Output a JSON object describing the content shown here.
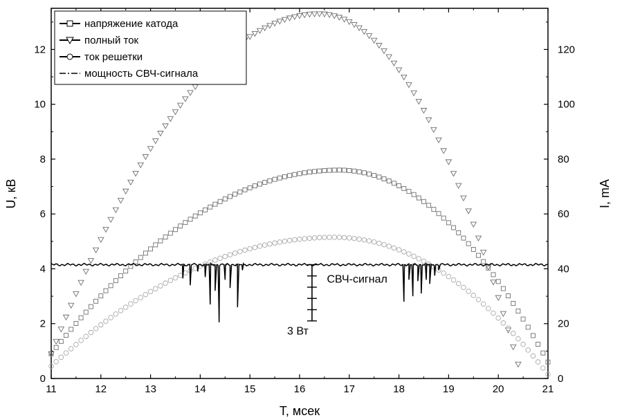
{
  "chart_data": {
    "type": "scatter",
    "xlabel": "T, мсек",
    "ylabel_left": "U, кВ",
    "ylabel_right": "I, mA",
    "xlim": [
      11,
      21
    ],
    "ylim_left": [
      0,
      13.5
    ],
    "ylim_right": [
      0,
      135
    ],
    "x_ticks": [
      11,
      12,
      13,
      14,
      15,
      16,
      17,
      18,
      19,
      20,
      21
    ],
    "y_left_ticks": [
      0,
      2,
      4,
      6,
      8,
      10,
      12
    ],
    "y_right_ticks": [
      0,
      20,
      40,
      60,
      80,
      100,
      120
    ],
    "grid": false,
    "legend": {
      "placement": "top-left",
      "entries": [
        {
          "label": "напряжение катода",
          "marker": "square"
        },
        {
          "label": "полный ток",
          "marker": "triangle-down"
        },
        {
          "label": "ток решетки",
          "marker": "circle"
        },
        {
          "label": "мощность СВЧ-сигнала",
          "marker": "dash-dot"
        }
      ]
    },
    "series": [
      {
        "name": "напряжение катода",
        "axis": "left",
        "marker": "square",
        "color": "#6e6e6e",
        "model": {
          "x_start": 11.0,
          "x_end": 21.0,
          "step": 0.1,
          "peak_x": 16.8,
          "peak_y": 7.6,
          "y_at_start": 0.9,
          "y_at_end": 0.6
        }
      },
      {
        "name": "полный ток",
        "axis": "right",
        "marker": "triangle-down",
        "color": "#6e6e6e",
        "model": {
          "x_start": 11.0,
          "x_end": 20.45,
          "step": 0.1,
          "peak_x": 16.4,
          "peak_y": 133,
          "y_at_start": 9,
          "y_at_end": 2
        }
      },
      {
        "name": "ток решетки",
        "axis": "right",
        "marker": "circle",
        "color": "#a8a8a8",
        "model": {
          "x_start": 11.0,
          "x_end": 21.0,
          "step": 0.1,
          "peak_x": 16.7,
          "peak_y": 51.5,
          "y_at_start": 4.5,
          "y_at_end": 1.5
        }
      },
      {
        "name": "мощность СВЧ-сигнала",
        "axis": "left",
        "marker": "line",
        "color": "#000000",
        "x_range": [
          11.0,
          21.0
        ],
        "baseline": 4.15,
        "dips": [
          {
            "x": 13.65,
            "y": 3.65
          },
          {
            "x": 13.8,
            "y": 3.4
          },
          {
            "x": 13.95,
            "y": 3.9
          },
          {
            "x": 14.1,
            "y": 3.7
          },
          {
            "x": 14.2,
            "y": 2.7
          },
          {
            "x": 14.3,
            "y": 3.2
          },
          {
            "x": 14.38,
            "y": 2.05
          },
          {
            "x": 14.5,
            "y": 3.6
          },
          {
            "x": 14.6,
            "y": 3.3
          },
          {
            "x": 14.75,
            "y": 2.6
          },
          {
            "x": 14.85,
            "y": 3.95
          },
          {
            "x": 18.1,
            "y": 2.8
          },
          {
            "x": 18.2,
            "y": 3.6
          },
          {
            "x": 18.28,
            "y": 3.0
          },
          {
            "x": 18.38,
            "y": 3.55
          },
          {
            "x": 18.45,
            "y": 3.1
          },
          {
            "x": 18.55,
            "y": 3.6
          },
          {
            "x": 18.62,
            "y": 3.45
          },
          {
            "x": 18.72,
            "y": 3.75
          },
          {
            "x": 18.8,
            "y": 3.95
          }
        ]
      }
    ],
    "annotations": [
      {
        "text": "СВЧ-сигнал",
        "x": 16.55,
        "y": 3.5
      },
      {
        "text": "3 Вт",
        "x": 15.75,
        "y": 1.6
      },
      {
        "type": "scale-bar",
        "x": 16.25,
        "y_top": 4.15,
        "y_bottom": 2.1,
        "ticks": 6
      }
    ]
  }
}
